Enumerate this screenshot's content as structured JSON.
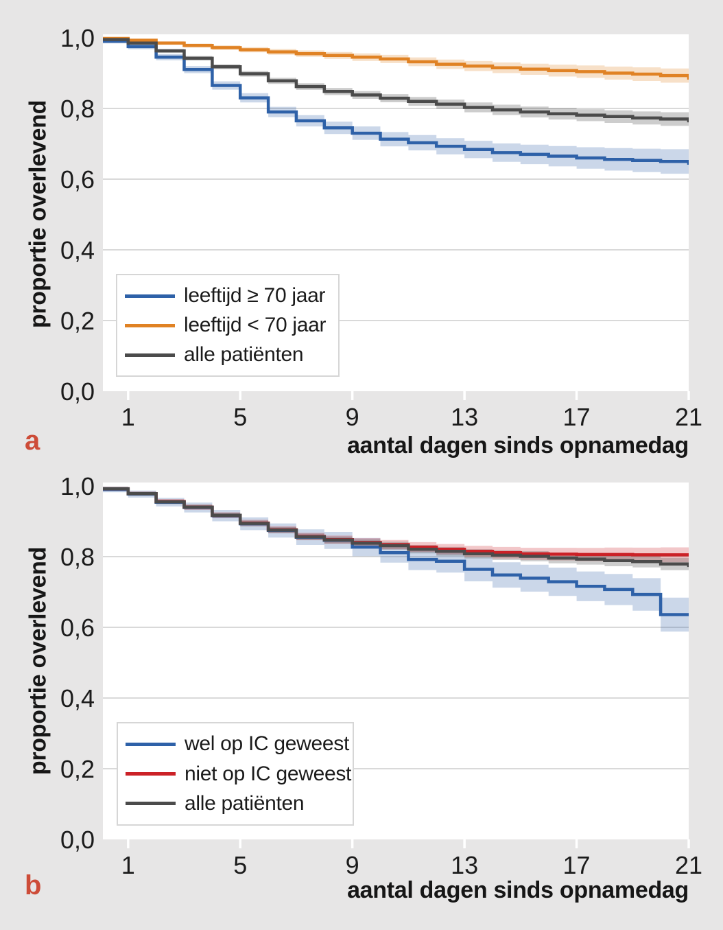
{
  "figure": {
    "background_color": "#e7e6e6",
    "plot_background_color": "#ffffff",
    "gridline_color": "#d9d9d9",
    "tick_mark_color": "#ffffff",
    "text_color": "#1b1b1b",
    "panels": [
      {
        "letter": "a",
        "letter_color": "#cd4c38"
      },
      {
        "letter": "b",
        "letter_color": "#cd4c38"
      }
    ]
  },
  "chart_data": [
    {
      "type": "line",
      "subtype": "kaplan-meier-step-with-confidence-bands",
      "panel": "a",
      "title": "",
      "xlabel": "aantal dagen sinds opnamedag",
      "ylabel": "proportie overlevend",
      "xlim": [
        0.1,
        21
      ],
      "ylim": [
        0.0,
        1.0
      ],
      "x_tick_values": [
        1,
        5,
        9,
        13,
        17,
        21
      ],
      "x_tick_labels": [
        "1",
        "5",
        "9",
        "13",
        "17",
        "21"
      ],
      "y_tick_values": [
        0.0,
        0.2,
        0.4,
        0.6,
        0.8,
        1.0
      ],
      "y_tick_labels": [
        "0,0",
        "0,2",
        "0,4",
        "0,6",
        "0,8",
        "1,0"
      ],
      "grid": "horizontal",
      "legend_position": "lower-left",
      "days": [
        0,
        1,
        2,
        3,
        4,
        5,
        6,
        7,
        8,
        9,
        10,
        11,
        12,
        13,
        14,
        15,
        16,
        17,
        18,
        19,
        20,
        21
      ],
      "series": [
        {
          "name": "leeftijd ≥ 70 jaar",
          "color": "#2e61a8",
          "band_opacity": 0.25,
          "ci_halfwidth_start": 0.006,
          "ci_halfwidth_end": 0.036,
          "values": [
            0.99,
            0.975,
            0.945,
            0.91,
            0.865,
            0.83,
            0.79,
            0.765,
            0.745,
            0.73,
            0.713,
            0.703,
            0.693,
            0.684,
            0.675,
            0.67,
            0.665,
            0.66,
            0.656,
            0.653,
            0.65,
            0.645
          ]
        },
        {
          "name": "leeftijd < 70 jaar",
          "color": "#e08224",
          "band_opacity": 0.25,
          "ci_halfwidth_start": 0.003,
          "ci_halfwidth_end": 0.021,
          "values": [
            0.998,
            0.993,
            0.985,
            0.978,
            0.972,
            0.966,
            0.96,
            0.955,
            0.95,
            0.945,
            0.94,
            0.932,
            0.925,
            0.92,
            0.915,
            0.911,
            0.907,
            0.904,
            0.9,
            0.897,
            0.893,
            0.886
          ]
        },
        {
          "name": "alle patiënten",
          "color": "#4b4b4b",
          "band_opacity": 0.28,
          "ci_halfwidth_start": 0.004,
          "ci_halfwidth_end": 0.02,
          "values": [
            0.995,
            0.985,
            0.963,
            0.942,
            0.918,
            0.898,
            0.878,
            0.862,
            0.848,
            0.838,
            0.829,
            0.82,
            0.812,
            0.803,
            0.796,
            0.79,
            0.785,
            0.781,
            0.777,
            0.773,
            0.77,
            0.765
          ]
        }
      ]
    },
    {
      "type": "line",
      "subtype": "kaplan-meier-step-with-confidence-bands",
      "panel": "b",
      "title": "",
      "xlabel": "aantal dagen sinds opnamedag",
      "ylabel": "proportie overlevend",
      "xlim": [
        0.1,
        21
      ],
      "ylim": [
        0.0,
        1.0
      ],
      "x_tick_values": [
        1,
        5,
        9,
        13,
        17,
        21
      ],
      "x_tick_labels": [
        "1",
        "5",
        "9",
        "13",
        "17",
        "21"
      ],
      "y_tick_values": [
        0.0,
        0.2,
        0.4,
        0.6,
        0.8,
        1.0
      ],
      "y_tick_labels": [
        "0,0",
        "0,2",
        "0,4",
        "0,6",
        "0,8",
        "1,0"
      ],
      "grid": "horizontal",
      "legend_position": "lower-left",
      "days": [
        0,
        1,
        2,
        3,
        4,
        5,
        6,
        7,
        8,
        9,
        10,
        11,
        12,
        13,
        14,
        15,
        16,
        17,
        18,
        19,
        20,
        21
      ],
      "series": [
        {
          "name": "wel op IC geweest",
          "color": "#2e61a8",
          "band_opacity": 0.25,
          "ci_halfwidth_start": 0.008,
          "ci_halfwidth_end": 0.05,
          "values": [
            0.99,
            0.977,
            0.954,
            0.939,
            0.916,
            0.893,
            0.874,
            0.855,
            0.846,
            0.827,
            0.811,
            0.792,
            0.787,
            0.764,
            0.748,
            0.739,
            0.729,
            0.716,
            0.707,
            0.693,
            0.636,
            0.636
          ]
        },
        {
          "name": "niet op IC geweest",
          "color": "#cb2127",
          "band_opacity": 0.25,
          "ci_halfwidth_start": 0.005,
          "ci_halfwidth_end": 0.022,
          "values": [
            0.992,
            0.978,
            0.956,
            0.94,
            0.917,
            0.895,
            0.876,
            0.857,
            0.848,
            0.84,
            0.834,
            0.827,
            0.821,
            0.815,
            0.811,
            0.808,
            0.807,
            0.806,
            0.806,
            0.805,
            0.805,
            0.805
          ]
        },
        {
          "name": "alle patiënten",
          "color": "#4b4b4b",
          "band_opacity": 0.28,
          "ci_halfwidth_start": 0.005,
          "ci_halfwidth_end": 0.018,
          "values": [
            0.992,
            0.978,
            0.955,
            0.94,
            0.917,
            0.894,
            0.875,
            0.856,
            0.847,
            0.838,
            0.831,
            0.821,
            0.815,
            0.808,
            0.804,
            0.801,
            0.796,
            0.793,
            0.789,
            0.786,
            0.779,
            0.775
          ]
        }
      ]
    }
  ]
}
